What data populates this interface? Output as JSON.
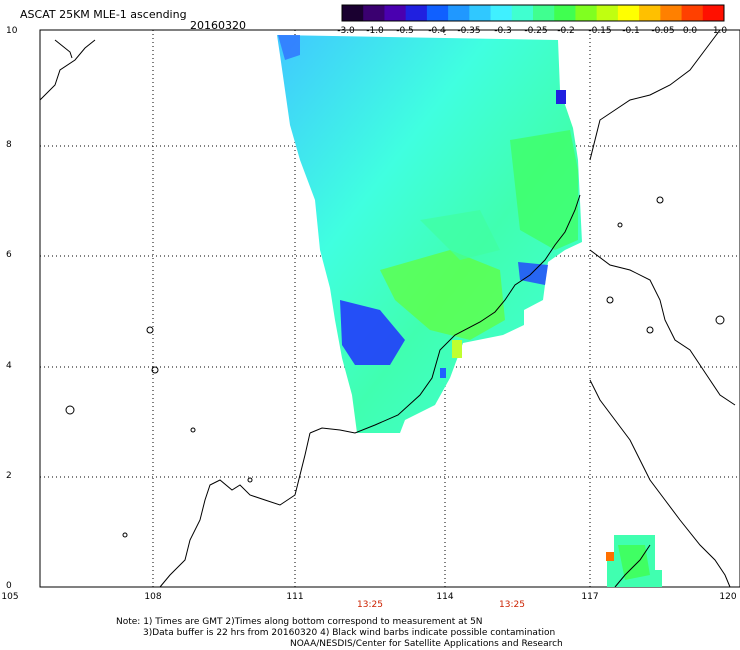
{
  "header": {
    "title": "ASCAT 25KM MLE-1 ascending",
    "date": "20160320"
  },
  "colorbar": {
    "labels": [
      "-3.0",
      "-1.0",
      "-0.5",
      "-0.4",
      "-0.35",
      "-0.3",
      "-0.25",
      "-0.2",
      "-0.15",
      "-0.1",
      "-0.05",
      "0.0",
      "1.0"
    ],
    "colors": [
      "#2a0040",
      "#4a00a0",
      "#2020e0",
      "#1060ff",
      "#20a0ff",
      "#40d8ff",
      "#40ffe0",
      "#40ff90",
      "#40ff40",
      "#a0ff20",
      "#ffff00",
      "#ff8000",
      "#ff2000"
    ]
  },
  "map": {
    "lat_labels": [
      "10",
      "8",
      "6",
      "4",
      "2",
      "0"
    ],
    "lon_labels": [
      "105",
      "108",
      "111",
      "114",
      "117",
      "120"
    ],
    "time_labels": [
      "13:25",
      "13:25"
    ]
  },
  "footer": {
    "line1": "Note: 1) Times are GMT 2)Times along bottom correspond to measurement at 5N",
    "line2": "3)Data buffer is 22 hrs from 20160320 4) Black wind barbs indicate possible contamination",
    "line3": "NOAA/NESDIS/Center for Satellite Applications and Research"
  }
}
